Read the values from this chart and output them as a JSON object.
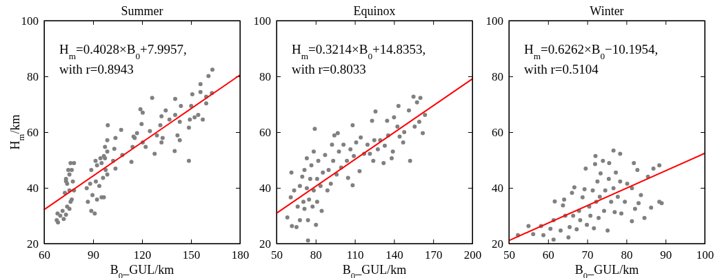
{
  "chart_data": [
    {
      "type": "scatter",
      "title": "Summer",
      "xlabel": "B$_{0}$_GUL/km",
      "ylabel": "H$_{m}$/km",
      "xlim": [
        60,
        180
      ],
      "xticks": [
        60,
        90,
        120,
        150,
        180
      ],
      "ylim": [
        20,
        100
      ],
      "yticks": [
        20,
        40,
        60,
        80,
        100
      ],
      "grid": false,
      "annotations": [
        "H$_{m}$=0.4028×B$_{0}$+7.9957,",
        "with r=0.8943"
      ],
      "series": [
        {
          "marker": "circle",
          "color": "#808080",
          "x": [
            67.7,
            68.5,
            68.2,
            69.9,
            72,
            71.3,
            73.4,
            74.1,
            76.2,
            76.9,
            72.7,
            75.5,
            74.1,
            73.4,
            75.5,
            74.8,
            76.2,
            78.3,
            76.9,
            77.6,
            78.3,
            75.5,
            73.4,
            88.9,
            91,
            86.8,
            89.6,
            92.4,
            95.2,
            96.6,
            86.1,
            88.2,
            91.7,
            93.8,
            96.1,
            98.7,
            88.9,
            92.4,
            95.2,
            97.3,
            98.7,
            97.3,
            98.7,
            99,
            96.6,
            94.5,
            91.5,
            97.7,
            103.7,
            103,
            102.3,
            103.7,
            107.2,
            107.9,
            113.5,
            114.2,
            115.5,
            116.9,
            114.8,
            119.7,
            120.4,
            119,
            122.2,
            120.4,
            126.2,
            124.8,
            127.7,
            129.1,
            131.2,
            131.9,
            132.6,
            131.9,
            134.5,
            136.8,
            140.3,
            140.3,
            140,
            141.7,
            143.1,
            143.8,
            143.1,
            148.7,
            149.3,
            148.7,
            150.1,
            150.8,
            152.2,
            154.4,
            155.8,
            155.8,
            157.2,
            159.3,
            159.3,
            160.7,
            162.8,
            163.1
          ],
          "values": [
            28.4,
            27.6,
            30.8,
            30,
            28.8,
            31.7,
            30.4,
            33.3,
            35,
            35.8,
            38.2,
            39.1,
            41.5,
            43.2,
            44.8,
            46.4,
            48.9,
            48.9,
            46.4,
            42.3,
            39.1,
            32.5,
            42.4,
            31.7,
            30.8,
            35,
            37.4,
            35.8,
            36.6,
            36.6,
            39.9,
            41.5,
            42.3,
            40.7,
            43.6,
            44.8,
            46.4,
            48.1,
            48.9,
            50.6,
            53,
            54.7,
            57.1,
            62.5,
            51.4,
            50.6,
            49.7,
            46.4,
            57.9,
            54,
            49.7,
            46.9,
            60.8,
            51.8,
            49.3,
            54.7,
            57.9,
            59.6,
            58.4,
            62.9,
            67,
            68.2,
            54.7,
            56.3,
            72.3,
            60.4,
            52.2,
            58.8,
            62.5,
            56.3,
            57.9,
            65.7,
            67.8,
            64.5,
            71.9,
            66.2,
            53.2,
            58.8,
            57.1,
            69.4,
            63.7,
            49.7,
            64.5,
            61.6,
            69.4,
            73.6,
            65.3,
            66.2,
            74.4,
            77.2,
            64.5,
            70.3,
            72.7,
            80.1,
            74,
            82.4
          ]
        },
        {
          "type": "line",
          "marker": "none",
          "color": "#ff0000",
          "x": [
            60,
            180
          ],
          "values": [
            32.2,
            80.5
          ]
        }
      ]
    },
    {
      "type": "scatter",
      "title": "Equinox",
      "xlabel": "B$_{0}$_GUL/km",
      "xlim": [
        50,
        200
      ],
      "xticks": [
        50,
        80,
        110,
        140,
        170,
        200
      ],
      "ylim": [
        20,
        100
      ],
      "yticks": [
        20,
        40,
        60,
        80,
        100
      ],
      "grid": false,
      "annotations": [
        "H$_{m}$=0.3214×B$_{0}$+14.8353,",
        "with r=0.8033"
      ],
      "series": [
        {
          "marker": "circle",
          "color": "#808080",
          "x": [
            58.3,
            60.9,
            61.4,
            61.8,
            63.5,
            65.3,
            66.2,
            67.9,
            67.9,
            69.7,
            70.6,
            71.4,
            71.4,
            73.2,
            73.2,
            74.1,
            74.1,
            74.9,
            75.8,
            76.7,
            77.6,
            78.5,
            78.5,
            79.3,
            80.2,
            81.1,
            81.1,
            82,
            83.7,
            84.6,
            85.5,
            87.2,
            89,
            89.9,
            91.6,
            92.5,
            93.4,
            94.3,
            96.9,
            96,
            97.8,
            99.5,
            101.3,
            103.9,
            104.8,
            106.6,
            108.3,
            108.3,
            109.2,
            111,
            113.6,
            114.5,
            117.1,
            119.7,
            121.5,
            124.1,
            123.2,
            124.9,
            125.8,
            127.6,
            129.4,
            132,
            132.9,
            134.7,
            135.5,
            138.2,
            139.1,
            140,
            142.6,
            143.4,
            144.3,
            147,
            147.8,
            151.4,
            152.3,
            154.9,
            155.8,
            157.6,
            159.3,
            160.2,
            162,
            163.7
          ],
          "values": [
            29.4,
            36.6,
            45.5,
            26.3,
            39.1,
            25.9,
            33.3,
            28.4,
            40.7,
            44,
            35,
            46.4,
            32.5,
            50.6,
            39.9,
            21.1,
            28.4,
            35.8,
            43.2,
            48.1,
            33.3,
            53,
            39.1,
            61.2,
            26.7,
            43.2,
            35,
            49.7,
            40.7,
            31.7,
            45.5,
            51.8,
            39.1,
            46.4,
            41.5,
            55.5,
            49.7,
            58.8,
            59.6,
            44.8,
            53,
            47.3,
            55.5,
            49.7,
            43.6,
            53.8,
            40.9,
            62.5,
            51.4,
            56.3,
            46,
            58.1,
            52.2,
            55.5,
            52.2,
            49.7,
            64.1,
            57.1,
            67.4,
            53.8,
            57.1,
            48.9,
            55.1,
            64.1,
            58.8,
            50.6,
            53,
            65.3,
            62,
            69.4,
            58.4,
            56.3,
            60,
            67.8,
            49.7,
            72.7,
            62,
            70.7,
            63.7,
            72.3,
            59.6,
            66.2
          ]
        },
        {
          "type": "line",
          "marker": "none",
          "color": "#ff0000",
          "x": [
            50,
            200
          ],
          "values": [
            30.9,
            79.1
          ]
        }
      ]
    },
    {
      "type": "scatter",
      "title": "Winter",
      "xlabel": "B$_{0}$_GUL/km",
      "xlim": [
        50,
        100
      ],
      "xticks": [
        50,
        60,
        70,
        80,
        90,
        100
      ],
      "ylim": [
        20,
        100
      ],
      "yticks": [
        20,
        40,
        60,
        80,
        100
      ],
      "grid": false,
      "annotations": [
        "H$_{m}$=0.6262×B$_{0}$−10.1954,",
        "with r=0.5104"
      ],
      "series": [
        {
          "marker": "circle",
          "color": "#808080",
          "x": [
            52.3,
            55,
            56.2,
            58.2,
            58.8,
            60.6,
            61.4,
            61.7,
            61.4,
            63.2,
            63.8,
            64.1,
            64.4,
            65.2,
            65.5,
            66.1,
            66.4,
            66.7,
            67.3,
            67.9,
            68.2,
            68.8,
            69.3,
            69.6,
            69.9,
            70.5,
            70.8,
            71.4,
            71.7,
            72,
            72.1,
            72.3,
            72.6,
            72.9,
            73.2,
            73.4,
            74,
            74.3,
            74.6,
            75.2,
            75.5,
            75.6,
            76.1,
            76.7,
            76.7,
            77,
            77.3,
            77.8,
            78.4,
            78.4,
            78.7,
            79.6,
            80.2,
            81.4,
            81.9,
            82.2,
            82.8,
            83.1,
            83.7,
            84.6,
            85.5,
            86.3,
            86.9,
            88.4,
            88.4,
            89,
            81.4
          ],
          "values": [
            23,
            26.3,
            23.4,
            26.3,
            23,
            25.3,
            21.4,
            35.1,
            28.4,
            24.7,
            33.7,
            35.8,
            30,
            22.2,
            25.9,
            38.2,
            30,
            40.2,
            25.1,
            31.7,
            28.4,
            36.6,
            39.5,
            46.9,
            26.7,
            33.3,
            30,
            39.1,
            25.5,
            48.5,
            51.4,
            35,
            42.3,
            29.2,
            36.8,
            45.2,
            49.7,
            31.7,
            39.1,
            24.7,
            43.2,
            48.9,
            35,
            53.4,
            39.9,
            31.3,
            45.5,
            36.8,
            52.2,
            42.3,
            30.8,
            35,
            41.5,
            39.9,
            48.9,
            32.5,
            46.4,
            34.5,
            37.4,
            29.2,
            44,
            32.9,
            46.9,
            48.1,
            35,
            34.5,
            28
          ]
        },
        {
          "type": "line",
          "marker": "none",
          "color": "#ff0000",
          "x": [
            50,
            100
          ],
          "values": [
            21.1,
            52.4
          ]
        }
      ]
    }
  ]
}
